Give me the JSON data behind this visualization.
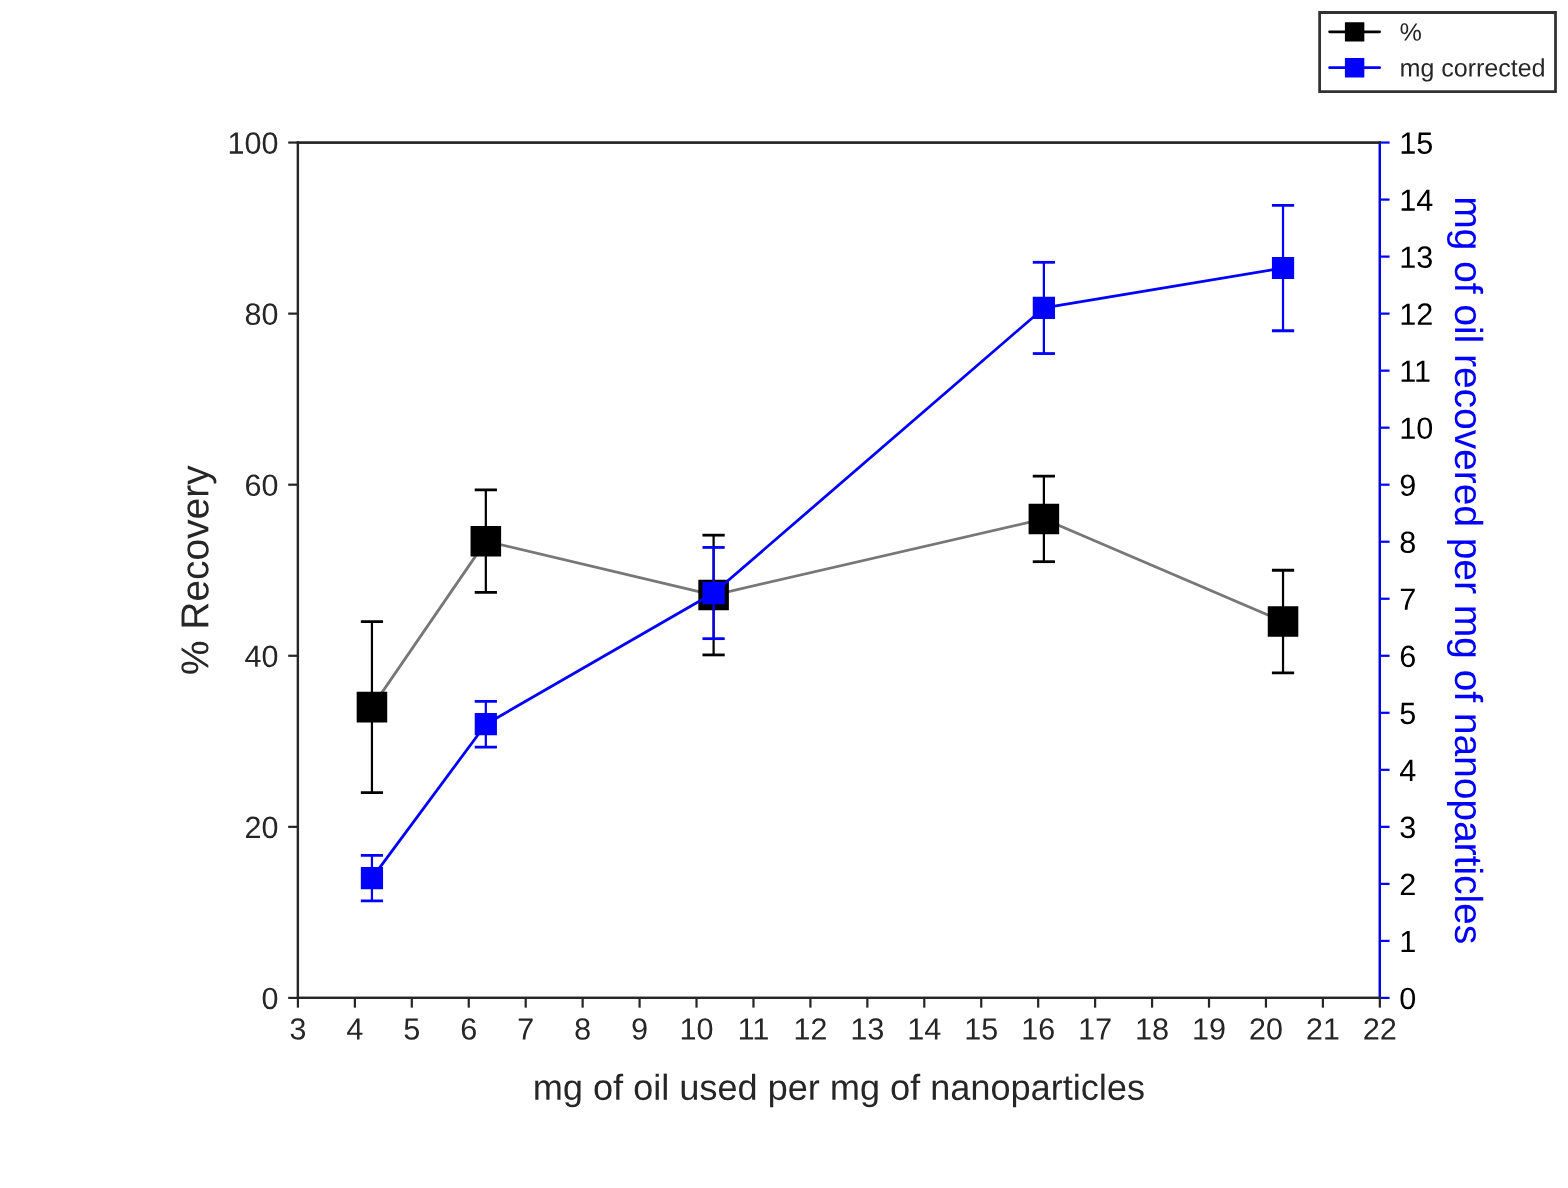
{
  "chart_data": {
    "type": "line",
    "xlabel": "mg of oil used per mg of nanoparticles",
    "ylabel": "% Recovery",
    "y2label": "mg of oil recovered per mg of nanoparticles",
    "x": [
      4.3,
      6.3,
      10.3,
      16.1,
      20.3
    ],
    "series": [
      {
        "name": "%",
        "color": "#000000",
        "values": [
          34,
          53.4,
          47.1,
          56,
          44
        ],
        "errors": [
          10,
          6,
          7,
          5,
          6
        ]
      },
      {
        "name": "mg corrected",
        "color": "#0000ff",
        "axis": "y2",
        "values": [
          2.1,
          4.8,
          7.1,
          12.1,
          12.8
        ],
        "errors": [
          0.4,
          0.4,
          0.8,
          0.8,
          1.1
        ]
      }
    ],
    "xlim": [
      3,
      22
    ],
    "xticks": [
      3,
      4,
      5,
      6,
      7,
      8,
      9,
      10,
      11,
      12,
      13,
      14,
      15,
      16,
      17,
      18,
      19,
      20,
      21,
      22
    ],
    "ylim": [
      0,
      100
    ],
    "yticks": [
      0,
      20,
      40,
      60,
      80,
      100
    ],
    "y2lim": [
      0,
      15
    ],
    "y2ticks": [
      0,
      1,
      2,
      3,
      4,
      5,
      6,
      7,
      8,
      9,
      10,
      11,
      12,
      13,
      14,
      15
    ],
    "marker": "square",
    "line_style": "solid",
    "grid": false,
    "legend": "top right"
  }
}
